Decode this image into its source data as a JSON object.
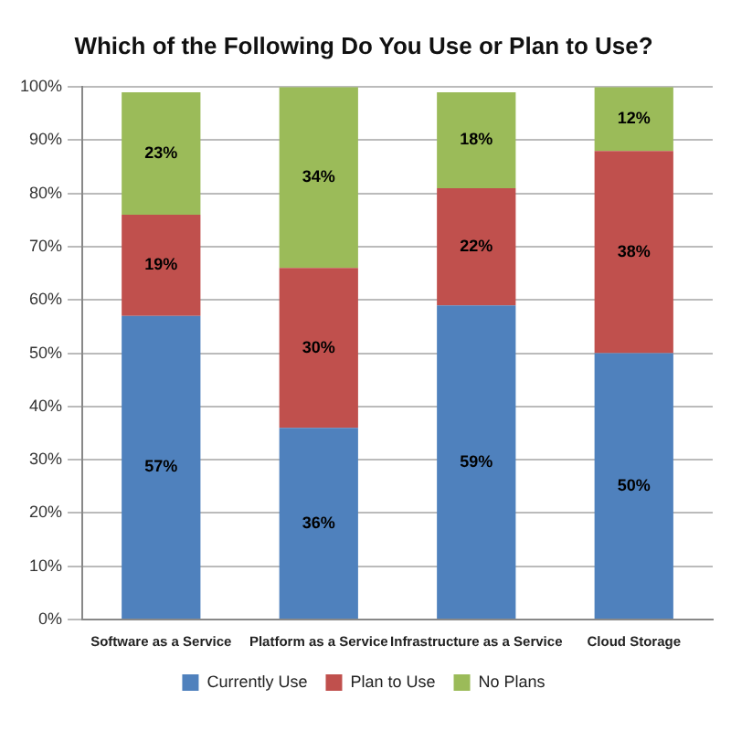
{
  "chart_data": {
    "type": "bar",
    "title": "Which of the Following Do You Use or Plan to Use?",
    "categories": [
      "Software as a Service",
      "Platform as a Service",
      "Infrastructure as a Service",
      "Cloud Storage"
    ],
    "stacked": true,
    "series": [
      {
        "name": "Currently Use",
        "color": "#4f81bd",
        "values": [
          57,
          36,
          59,
          50
        ],
        "value_labels": [
          "57%",
          "36%",
          "59%",
          "50%"
        ]
      },
      {
        "name": "Plan to Use",
        "color": "#c0504d",
        "values": [
          19,
          30,
          22,
          38
        ],
        "value_labels": [
          "19%",
          "30%",
          "22%",
          "38%"
        ]
      },
      {
        "name": "No Plans",
        "color": "#9bbb59",
        "values": [
          23,
          34,
          18,
          12
        ],
        "value_labels": [
          "23%",
          "34%",
          "18%",
          "12%"
        ]
      }
    ],
    "ylim": [
      0,
      100
    ],
    "yticks": [
      {
        "value": 0,
        "label": "0%"
      },
      {
        "value": 10,
        "label": "10%"
      },
      {
        "value": 20,
        "label": "20%"
      },
      {
        "value": 30,
        "label": "30%"
      },
      {
        "value": 40,
        "label": "40%"
      },
      {
        "value": 50,
        "label": "50%"
      },
      {
        "value": 60,
        "label": "60%"
      },
      {
        "value": 70,
        "label": "70%"
      },
      {
        "value": 80,
        "label": "80%"
      },
      {
        "value": 90,
        "label": "90%"
      },
      {
        "value": 100,
        "label": "100%"
      }
    ],
    "grid": "y",
    "legend": "bottom"
  }
}
